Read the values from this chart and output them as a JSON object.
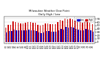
{
  "title": "Milwaukee Weather Dew Point",
  "subtitle": "Daily High / Low",
  "background_color": "#ffffff",
  "plot_bg_color": "#ffffff",
  "high_color": "#cc0000",
  "low_color": "#0000cc",
  "ylim": [
    -4,
    76
  ],
  "yticks": [
    0,
    10,
    20,
    30,
    40,
    50,
    60,
    70
  ],
  "grid_color": "#cccccc",
  "dashed_lines": [
    24.5,
    27.5
  ],
  "high_values": [
    44,
    52,
    52,
    62,
    60,
    58,
    56,
    56,
    58,
    60,
    60,
    58,
    58,
    52,
    50,
    52,
    56,
    56,
    54,
    54,
    54,
    60,
    66,
    64,
    70,
    68,
    70,
    68,
    64,
    62,
    60,
    58,
    64,
    62,
    58,
    54
  ],
  "low_values": [
    28,
    32,
    32,
    38,
    36,
    34,
    34,
    34,
    36,
    38,
    36,
    34,
    32,
    28,
    26,
    28,
    32,
    32,
    30,
    30,
    30,
    34,
    40,
    38,
    46,
    44,
    46,
    44,
    40,
    38,
    36,
    34,
    40,
    38,
    34,
    30
  ],
  "xlabels": [
    "6/1",
    "6/2",
    "6/3",
    "6/4",
    "6/5",
    "6/6",
    "6/7",
    "6/8",
    "6/9",
    "6/10",
    "6/11",
    "6/12",
    "6/13",
    "6/14",
    "6/15",
    "6/16",
    "6/17",
    "6/18",
    "6/19",
    "6/20",
    "6/21",
    "6/22",
    "6/23",
    "6/24",
    "6/25",
    "6/26",
    "6/27",
    "6/28",
    "6/29",
    "6/30",
    "7/1",
    "7/2",
    "7/3",
    "7/4",
    "7/5",
    "7/6"
  ]
}
